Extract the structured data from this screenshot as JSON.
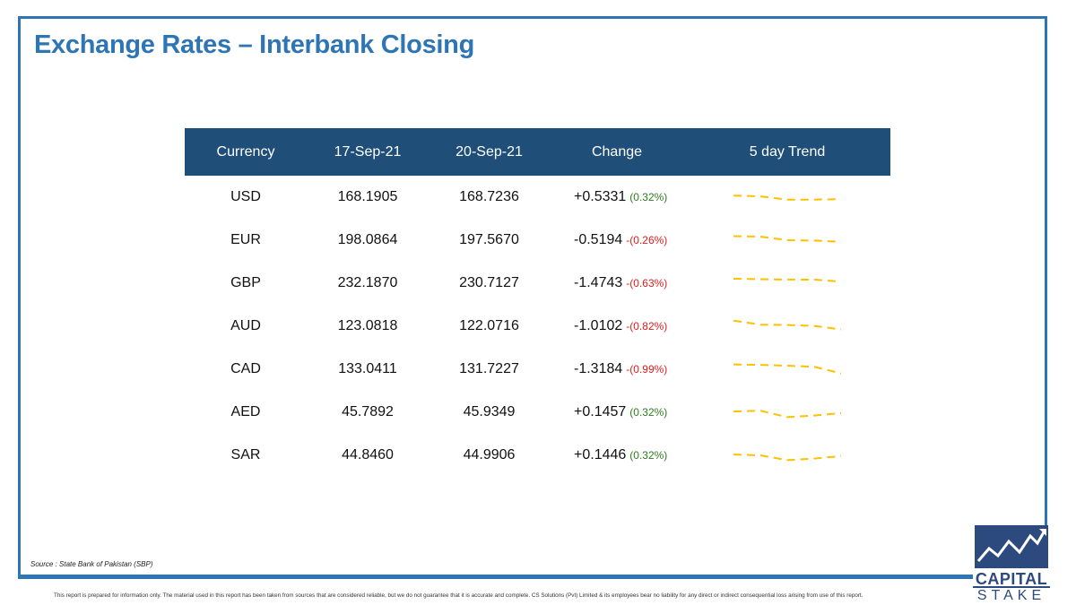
{
  "title": "Exchange Rates – Interbank Closing",
  "table": {
    "headers": [
      "Currency",
      "17-Sep-21",
      "20-Sep-21",
      "Change",
      "5 day Trend"
    ],
    "rows": [
      {
        "currency": "USD",
        "prev": "168.1905",
        "curr": "168.7236",
        "change": "+0.5331",
        "pct": "(0.32%)",
        "dir": "pos",
        "trend": [
          0.6,
          0.55,
          0.35,
          0.35,
          0.38
        ]
      },
      {
        "currency": "EUR",
        "prev": "198.0864",
        "curr": "197.5670",
        "change": "-0.5194",
        "pct": "-(0.26%)",
        "dir": "neg",
        "trend": [
          0.75,
          0.72,
          0.5,
          0.48,
          0.4
        ]
      },
      {
        "currency": "GBP",
        "prev": "232.1870",
        "curr": "230.7127",
        "change": "-1.4743",
        "pct": "-(0.63%)",
        "dir": "neg",
        "trend": [
          0.78,
          0.75,
          0.73,
          0.72,
          0.6
        ]
      },
      {
        "currency": "AUD",
        "prev": "123.0818",
        "curr": "122.0716",
        "change": "-1.0102",
        "pct": "-(0.82%)",
        "dir": "neg",
        "trend": [
          0.85,
          0.6,
          0.58,
          0.52,
          0.3
        ]
      },
      {
        "currency": "CAD",
        "prev": "133.0411",
        "curr": "131.7227",
        "change": "-1.3184",
        "pct": "-(0.99%)",
        "dir": "neg",
        "trend": [
          0.8,
          0.77,
          0.72,
          0.65,
          0.25
        ]
      },
      {
        "currency": "AED",
        "prev": "45.7892",
        "curr": "45.9349",
        "change": "+0.1457",
        "pct": "(0.32%)",
        "dir": "pos",
        "trend": [
          0.55,
          0.6,
          0.2,
          0.3,
          0.45
        ]
      },
      {
        "currency": "SAR",
        "prev": "44.8460",
        "curr": "44.9906",
        "change": "+0.1446",
        "pct": "(0.32%)",
        "dir": "pos",
        "trend": [
          0.55,
          0.5,
          0.2,
          0.3,
          0.45
        ]
      }
    ]
  },
  "source": "Source : State Bank of Pakistan (SBP)",
  "disclaimer": "This report is prepared for information only. The material used in this report has been taken from sources that are considered reliable, but we do not guarantee that it is accurate and complete. CS Solutions (Pvt) Limited & its employees bear no liability for any direct or indirect consequential loss arising from use of this report.",
  "logo": {
    "line1": "CAPITAL",
    "line2": "STAKE"
  },
  "colors": {
    "accent": "#2e75b6",
    "header_bg": "#1f4e79",
    "trend": "#ffc000",
    "positive": "#2e7d1f",
    "negative": "#e31b1b"
  }
}
